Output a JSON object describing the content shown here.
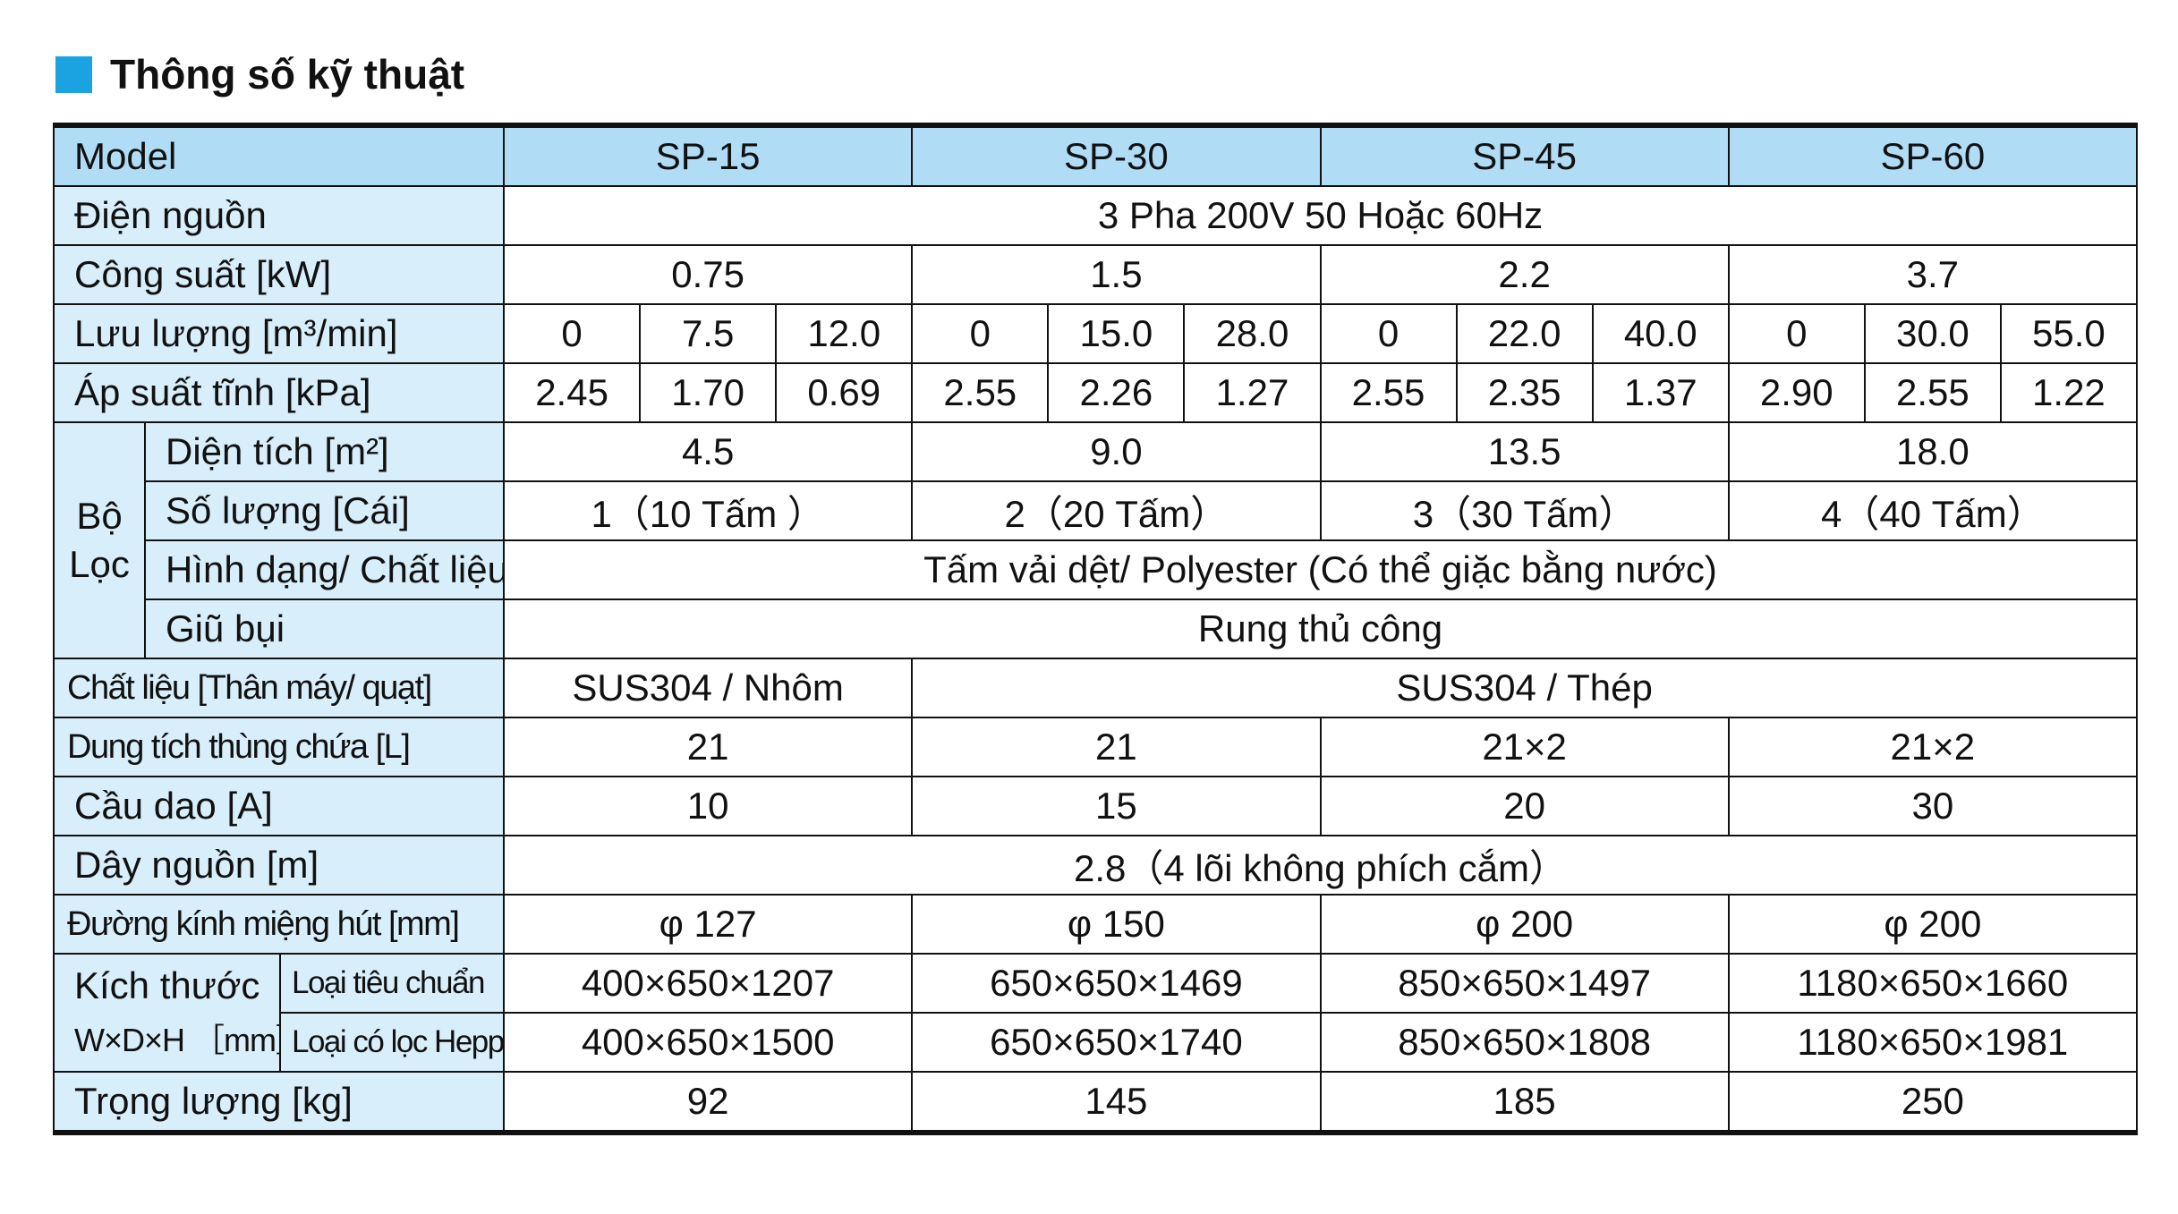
{
  "title": "Thông số kỹ thuật",
  "table": {
    "header": [
      "Model",
      "SP-15",
      "SP-30",
      "SP-45",
      "SP-60"
    ],
    "rows": [
      [
        "Điện nguồn",
        "3 Pha 200V 50 Hoặc 60Hz"
      ],
      [
        "Công suất [kW]",
        "0.75",
        "1.5",
        "2.2",
        "3.7"
      ],
      [
        "Lưu lượng [m³/min]",
        "0",
        "7.5",
        "12.0",
        "0",
        "15.0",
        "28.0",
        "0",
        "22.0",
        "40.0",
        "0",
        "30.0",
        "55.0"
      ],
      [
        "Áp suất tĩnh [kPa]",
        "2.45",
        "1.70",
        "0.69",
        "2.55",
        "2.26",
        "1.27",
        "2.55",
        "2.35",
        "1.37",
        "2.90",
        "2.55",
        "1.22"
      ],
      [
        "Bộ Lọc",
        "Diện tích [m²]",
        "4.5",
        "9.0",
        "13.5",
        "18.0"
      ],
      [
        "Số lượng [Cái]",
        "1（10 Tấm ）",
        "2（20 Tấm）",
        "3（30 Tấm）",
        "4（40 Tấm）"
      ],
      [
        "Hình dạng/ Chất liệu",
        "Tấm vải dệt/  Polyester (Có thể giặc bằng nước)"
      ],
      [
        "Giũ bụi",
        "Rung thủ công"
      ],
      [
        "Chất liệu [Thân máy/ quạt]",
        "SUS304 / Nhôm",
        "SUS304 / Thép"
      ],
      [
        "Dung tích thùng chứa [L]",
        "21",
        "21",
        "21×2",
        "21×2"
      ],
      [
        "Cầu dao [A]",
        "10",
        "15",
        "20",
        "30"
      ],
      [
        "Dây nguồn [m]",
        "2.8（4 lõi không phích cắm）"
      ],
      [
        "Đường kính miệng hút [mm]",
        "φ 127",
        "φ 150",
        "φ 200",
        "φ 200"
      ],
      [
        "Kích thước",
        "W×D×H ［mm］",
        "Loại tiêu chuẩn",
        "400×650×1207",
        "650×650×1469",
        "850×650×1497",
        "1180×650×1660"
      ],
      [
        "Loại có lọc Heppa",
        "400×650×1500",
        "650×650×1740",
        "850×650×1808",
        "1180×650×1981"
      ],
      [
        "Trọng lượng [kg]",
        "92",
        "145",
        "185",
        "250"
      ]
    ]
  }
}
